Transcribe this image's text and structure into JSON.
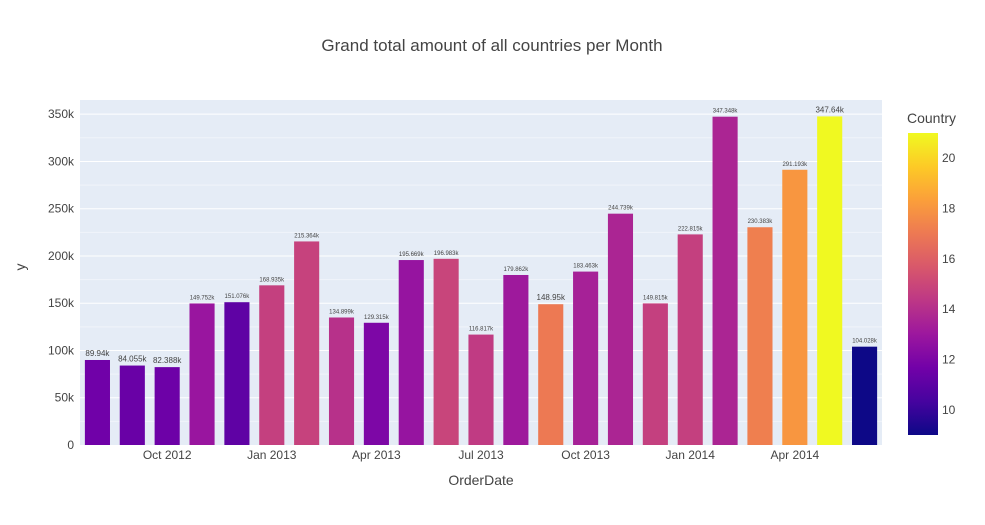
{
  "chart_data": {
    "type": "bar",
    "title": "Grand total amount of all countries per Month",
    "xlabel": "OrderDate",
    "ylabel": "y",
    "ylim": [
      0,
      365000
    ],
    "y_ticks": [
      0,
      50000,
      100000,
      150000,
      200000,
      250000,
      300000,
      350000
    ],
    "y_tick_labels": [
      "0",
      "50k",
      "100k",
      "150k",
      "200k",
      "250k",
      "300k",
      "350k"
    ],
    "x_tick_labels": [
      {
        "label": "Oct 2012",
        "at_index": 2
      },
      {
        "label": "Jan 2013",
        "at_index": 5
      },
      {
        "label": "Apr 2013",
        "at_index": 8
      },
      {
        "label": "Jul 2013",
        "at_index": 11
      },
      {
        "label": "Oct 2013",
        "at_index": 14
      },
      {
        "label": "Jan 2014",
        "at_index": 17
      },
      {
        "label": "Apr 2014",
        "at_index": 20
      }
    ],
    "bars": [
      {
        "value": 89940,
        "label": "89.94k",
        "country": 11.6
      },
      {
        "value": 84055,
        "label": "84.055k",
        "country": 11.4
      },
      {
        "value": 82388,
        "label": "82.388k",
        "country": 11.5
      },
      {
        "value": 149752,
        "label": "149.752k",
        "country": 12.9
      },
      {
        "value": 151076,
        "label": "151.076k",
        "country": 11.1
      },
      {
        "value": 168935,
        "label": "168.935k",
        "country": 14.7
      },
      {
        "value": 215364,
        "label": "215.364k",
        "country": 14.8
      },
      {
        "value": 134899,
        "label": "134.899k",
        "country": 14.1
      },
      {
        "value": 129315,
        "label": "129.315k",
        "country": 12.0
      },
      {
        "value": 195669,
        "label": "195.669k",
        "country": 12.8
      },
      {
        "value": 196983,
        "label": "196.983k",
        "country": 14.9
      },
      {
        "value": 116817,
        "label": "116.817k",
        "country": 14.5
      },
      {
        "value": 179862,
        "label": "179.862k",
        "country": 13.1
      },
      {
        "value": 148950,
        "label": "148.95k",
        "country": 17.0
      },
      {
        "value": 183463,
        "label": "183.463k",
        "country": 13.4
      },
      {
        "value": 244739,
        "label": "244.739k",
        "country": 13.6
      },
      {
        "value": 149815,
        "label": "149.815k",
        "country": 14.7
      },
      {
        "value": 222815,
        "label": "222.815k",
        "country": 14.7
      },
      {
        "value": 347348,
        "label": "347.348k",
        "country": 13.6
      },
      {
        "value": 230383,
        "label": "230.383k",
        "country": 17.2
      },
      {
        "value": 291193,
        "label": "291.193k",
        "country": 18.0
      },
      {
        "value": 347640,
        "label": "347.64k",
        "country": 21.0
      },
      {
        "value": 104028,
        "label": "104.028k",
        "country": 9.0
      }
    ],
    "colorbar": {
      "title": "Country",
      "range": [
        9,
        21
      ],
      "ticks": [
        10,
        12,
        14,
        16,
        18,
        20
      ],
      "colorscale": [
        "#0d0887",
        "#46039f",
        "#7201a8",
        "#9c179e",
        "#bd3786",
        "#d8576b",
        "#ed7953",
        "#fb9f3a",
        "#fdca26",
        "#f0f921"
      ]
    },
    "colors": {
      "plot_background": "#e5ecf6",
      "gridline": "#ffffff",
      "text": "#444444"
    }
  }
}
